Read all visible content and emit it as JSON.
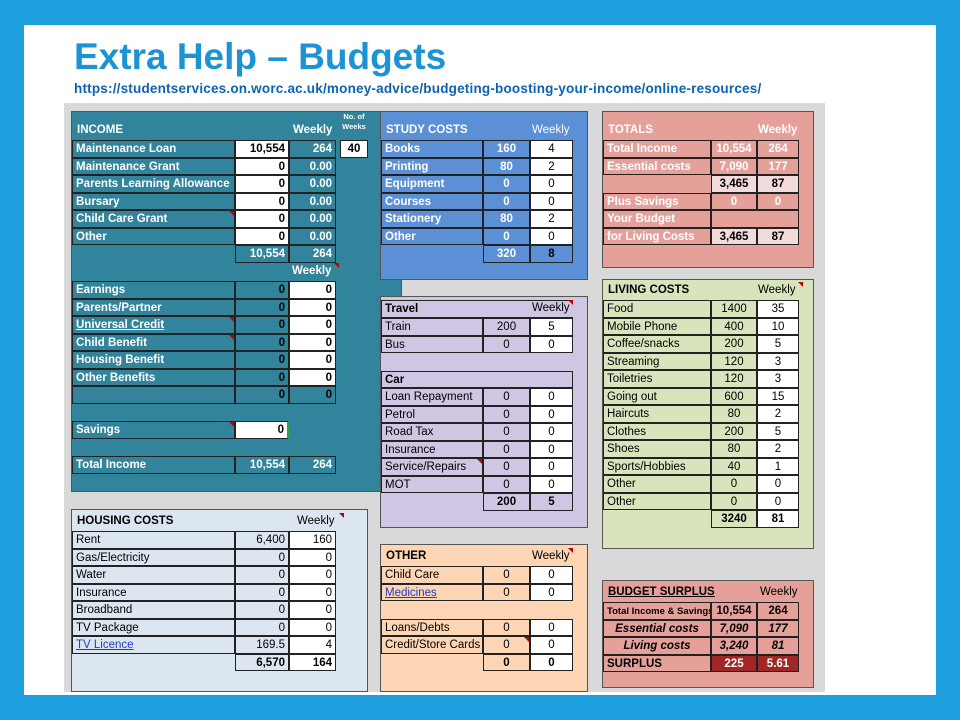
{
  "slide": {
    "title": "Extra Help – Budgets",
    "url": "https://studentservices.on.worc.ac.uk/money-advice/budgeting-boosting-your-income/online-resources/"
  },
  "colors": {
    "frame": "#1c9fdc",
    "income": "#31849b",
    "study": "#5b8fd6",
    "totals": "#e6a09a",
    "travel": "#cfc6e3",
    "living": "#d8e4bc",
    "housing": "#dce6f1",
    "other": "#fcd5b4",
    "surplus": "#e6a09a",
    "surplus_cell": "#a32626"
  },
  "income": {
    "title": "INCOME",
    "weekly_label": "Weekly",
    "weeks_label": "No. of Weeks",
    "weeks_value": "40",
    "rows": [
      {
        "label": "Maintenance Loan",
        "value": "10,554",
        "weekly": "264"
      },
      {
        "label": "Maintenance Grant",
        "value": "0",
        "weekly": "0.00"
      },
      {
        "label": "Parents Learning Allowance",
        "value": "0",
        "weekly": "0.00"
      },
      {
        "label": "Bursary",
        "value": "0",
        "weekly": "0.00"
      },
      {
        "label": "Child Care Grant",
        "value": "0",
        "weekly": "0.00"
      },
      {
        "label": "Other",
        "value": "0",
        "weekly": "0.00"
      }
    ],
    "subtotal": {
      "value": "10,554",
      "weekly": "264"
    },
    "weekly_label2": "Weekly",
    "benefits": [
      {
        "label": "Earnings",
        "value": "0",
        "weekly": "0"
      },
      {
        "label": "Parents/Partner",
        "value": "0",
        "weekly": "0"
      },
      {
        "label": "Universal Credit",
        "value": "0",
        "weekly": "0"
      },
      {
        "label": "Child Benefit",
        "value": "0",
        "weekly": "0"
      },
      {
        "label": "Housing Benefit",
        "value": "0",
        "weekly": "0"
      },
      {
        "label": "Other Benefits",
        "value": "0",
        "weekly": "0"
      }
    ],
    "benefits_total": {
      "value": "0",
      "weekly": "0"
    },
    "savings_label": "Savings",
    "savings_value": "0",
    "total_label": "Total Income",
    "total_value": "10,554",
    "total_weekly": "264"
  },
  "study": {
    "title": "STUDY COSTS",
    "weekly_label": "Weekly",
    "rows": [
      {
        "label": "Books",
        "value": "160",
        "weekly": "4"
      },
      {
        "label": "Printing",
        "value": "80",
        "weekly": "2"
      },
      {
        "label": "Equipment",
        "value": "0",
        "weekly": "0"
      },
      {
        "label": "Courses",
        "value": "0",
        "weekly": "0"
      },
      {
        "label": "Stationery",
        "value": "80",
        "weekly": "2"
      },
      {
        "label": "Other",
        "value": "0",
        "weekly": "0"
      }
    ],
    "total": {
      "value": "320",
      "weekly": "8"
    }
  },
  "totals": {
    "title": "TOTALS",
    "weekly_label": "Weekly",
    "rows": [
      {
        "label": "Total Income",
        "value": "10,554",
        "weekly": "264"
      },
      {
        "label": "Essential costs",
        "value": "7,090",
        "weekly": "177"
      }
    ],
    "net": {
      "value": "3,465",
      "weekly": "87"
    },
    "savings": {
      "label": "Plus Savings",
      "value": "0",
      "weekly": "0"
    },
    "budget_label1": "Your Budget",
    "budget_label2": "for Living Costs",
    "budget": {
      "value": "3,465",
      "weekly": "87"
    }
  },
  "travel": {
    "title": "Travel",
    "weekly_label": "Weekly",
    "rows": [
      {
        "label": "Train",
        "value": "200",
        "weekly": "5"
      },
      {
        "label": "Bus",
        "value": "0",
        "weekly": "0"
      }
    ],
    "car_title": "Car",
    "car_rows": [
      {
        "label": "Loan Repayment",
        "value": "0",
        "weekly": "0"
      },
      {
        "label": "Petrol",
        "value": "0",
        "weekly": "0"
      },
      {
        "label": "Road Tax",
        "value": "0",
        "weekly": "0"
      },
      {
        "label": "Insurance",
        "value": "0",
        "weekly": "0"
      },
      {
        "label": "Service/Repairs",
        "value": "0",
        "weekly": "0"
      },
      {
        "label": "MOT",
        "value": "0",
        "weekly": "0"
      }
    ],
    "total": {
      "value": "200",
      "weekly": "5"
    }
  },
  "living": {
    "title": "LIVING COSTS",
    "weekly_label": "Weekly",
    "rows": [
      {
        "label": "Food",
        "value": "1400",
        "weekly": "35"
      },
      {
        "label": "Mobile Phone",
        "value": "400",
        "weekly": "10"
      },
      {
        "label": "Coffee/snacks",
        "value": "200",
        "weekly": "5"
      },
      {
        "label": "Streaming",
        "value": "120",
        "weekly": "3"
      },
      {
        "label": "Toiletries",
        "value": "120",
        "weekly": "3"
      },
      {
        "label": "Going out",
        "value": "600",
        "weekly": "15"
      },
      {
        "label": "Haircuts",
        "value": "80",
        "weekly": "2"
      },
      {
        "label": "Clothes",
        "value": "200",
        "weekly": "5"
      },
      {
        "label": "Shoes",
        "value": "80",
        "weekly": "2"
      },
      {
        "label": "Sports/Hobbies",
        "value": "40",
        "weekly": "1"
      },
      {
        "label": "Other",
        "value": "0",
        "weekly": "0"
      },
      {
        "label": "Other",
        "value": "0",
        "weekly": "0"
      }
    ],
    "total": {
      "value": "3240",
      "weekly": "81"
    }
  },
  "housing": {
    "title": "HOUSING COSTS",
    "weekly_label": "Weekly",
    "rows": [
      {
        "label": "Rent",
        "value": "6,400",
        "weekly": "160"
      },
      {
        "label": "Gas/Electricity",
        "value": "0",
        "weekly": "0"
      },
      {
        "label": "Water",
        "value": "0",
        "weekly": "0"
      },
      {
        "label": "Insurance",
        "value": "0",
        "weekly": "0"
      },
      {
        "label": "Broadband",
        "value": "0",
        "weekly": "0"
      },
      {
        "label": "TV Package",
        "value": "0",
        "weekly": "0"
      },
      {
        "label": "TV Licence",
        "value": "169.5",
        "weekly": "4"
      }
    ],
    "total": {
      "value": "6,570",
      "weekly": "164"
    }
  },
  "other": {
    "title": "OTHER",
    "weekly_label": "Weekly",
    "rows": [
      {
        "label": "Child Care",
        "value": "0",
        "weekly": "0"
      },
      {
        "label": "Medicines",
        "value": "0",
        "weekly": "0"
      }
    ],
    "debt_rows": [
      {
        "label": "Loans/Debts",
        "value": "0",
        "weekly": "0"
      },
      {
        "label": "Credit/Store Cards",
        "value": "0",
        "weekly": "0"
      }
    ],
    "total": {
      "value": "0",
      "weekly": "0"
    }
  },
  "surplus": {
    "title": "BUDGET SURPLUS",
    "weekly_label": "Weekly",
    "income_label": "Total Income & Savings",
    "income_value": "10,554",
    "income_weekly": "264",
    "essential_label": "Essential costs",
    "essential_value": "7,090",
    "essential_weekly": "177",
    "living_label": "Living costs",
    "living_value": "3,240",
    "living_weekly": "81",
    "surplus_label": "SURPLUS",
    "surplus_value": "225",
    "surplus_weekly": "5.61"
  }
}
